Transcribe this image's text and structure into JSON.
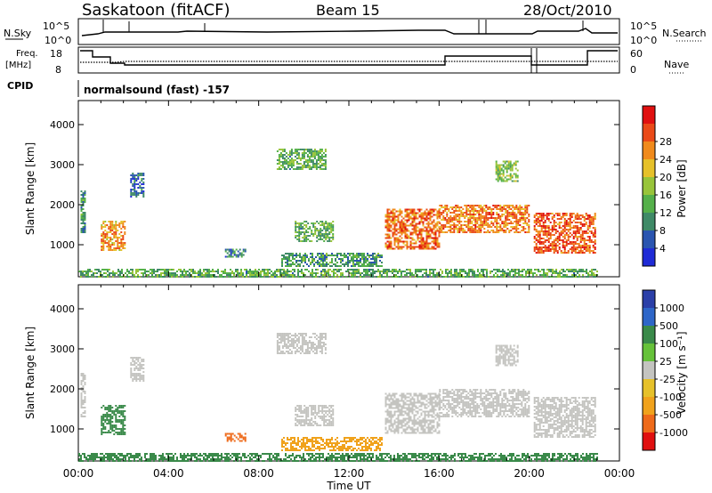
{
  "header": {
    "station": "Saskatoon (fitACF)",
    "beam": "Beam 15",
    "date": "28/Oct/2010"
  },
  "top_panels": {
    "nsky_label": "N.Sky",
    "nsky_ticks": [
      "10^5",
      "10^0"
    ],
    "nsearch_label": "N.Search",
    "nsearch_ticks": [
      "10^5",
      "10^0"
    ],
    "freq_label_1": "Freq.",
    "freq_label_2": "[MHz]",
    "freq_ticks": [
      "18",
      "8"
    ],
    "nave_label": "Nave",
    "nave_ticks": [
      "60",
      "0"
    ],
    "cpid_label": "CPID",
    "cpid_value": "normalsound (fast) -157"
  },
  "colors": {
    "power_scale": [
      "#1f2bd6",
      "#2a55b0",
      "#3f8a67",
      "#55b04a",
      "#98c43a",
      "#e6c12a",
      "#f08a1c",
      "#ea4a18",
      "#e01010"
    ],
    "velocity_scale": [
      "#2b3fa8",
      "#2e66c8",
      "#3a8a4a",
      "#66c23a",
      "#c4c4c0",
      "#e6c12a",
      "#f0a21c",
      "#ee6a1a",
      "#e01010"
    ],
    "ground_scatter": "#bcbcb8"
  },
  "chart_data": [
    {
      "type": "heatmap",
      "title": "Power",
      "xlabel": "",
      "ylabel": "Slant Range [km]",
      "x_ticks": [
        "00:00",
        "04:00",
        "08:00",
        "12:00",
        "16:00",
        "20:00",
        "00:00"
      ],
      "y_ticks": [
        "1000",
        "2000",
        "3000",
        "4000"
      ],
      "ylim": [
        200,
        4600
      ],
      "colorbar_label": "Power [dB]",
      "colorbar_ticks": [
        "4",
        "8",
        "12",
        "16",
        "20",
        "24",
        "28"
      ],
      "regions": [
        {
          "t0": 0.1,
          "t1": 0.3,
          "r0": 1300,
          "r1": 2400,
          "value": 10
        },
        {
          "t0": 1.0,
          "t1": 2.1,
          "r0": 850,
          "r1": 1600,
          "value": 22
        },
        {
          "t0": 2.3,
          "t1": 2.9,
          "r0": 2200,
          "r1": 2800,
          "value": 6
        },
        {
          "t0": 8.8,
          "t1": 11.0,
          "r0": 2900,
          "r1": 3400,
          "value": 12
        },
        {
          "t0": 9.6,
          "t1": 11.3,
          "r0": 1100,
          "r1": 1600,
          "value": 12
        },
        {
          "t0": 6.5,
          "t1": 7.4,
          "r0": 700,
          "r1": 900,
          "value": 8
        },
        {
          "t0": 9.0,
          "t1": 13.5,
          "r0": 450,
          "r1": 800,
          "value": 10
        },
        {
          "t0": 13.6,
          "t1": 16.0,
          "r0": 900,
          "r1": 1900,
          "value": 25
        },
        {
          "t0": 16.0,
          "t1": 20.0,
          "r0": 1300,
          "r1": 2000,
          "value": 24
        },
        {
          "t0": 20.2,
          "t1": 22.9,
          "r0": 800,
          "r1": 1800,
          "value": 26
        },
        {
          "t0": 18.5,
          "t1": 19.5,
          "r0": 2600,
          "r1": 3100,
          "value": 14
        },
        {
          "t0": 0,
          "t1": 23,
          "r0": 200,
          "r1": 400,
          "value": 12
        }
      ]
    },
    {
      "type": "heatmap",
      "title": "Velocity",
      "xlabel": "Time UT",
      "ylabel": "Slant Range [km]",
      "x_ticks": [
        "00:00",
        "04:00",
        "08:00",
        "12:00",
        "16:00",
        "20:00",
        "00:00"
      ],
      "y_ticks": [
        "1000",
        "2000",
        "3000",
        "4000"
      ],
      "ylim": [
        200,
        4600
      ],
      "colorbar_label": "Velocity [m s⁻¹]",
      "colorbar_ticks": [
        "1000",
        "500",
        "100",
        "25",
        "-25",
        "-100",
        "-500",
        "-1000"
      ],
      "regions": [
        {
          "t0": 0.1,
          "t1": 0.3,
          "r0": 1300,
          "r1": 2400,
          "value": 0
        },
        {
          "t0": 1.0,
          "t1": 2.1,
          "r0": 850,
          "r1": 1600,
          "value": 150
        },
        {
          "t0": 2.3,
          "t1": 2.9,
          "r0": 2200,
          "r1": 2800,
          "value": 0
        },
        {
          "t0": 8.8,
          "t1": 11.0,
          "r0": 2900,
          "r1": 3400,
          "value": 0
        },
        {
          "t0": 9.6,
          "t1": 11.3,
          "r0": 1100,
          "r1": 1600,
          "value": 0
        },
        {
          "t0": 6.5,
          "t1": 7.4,
          "r0": 700,
          "r1": 900,
          "value": -400
        },
        {
          "t0": 9.0,
          "t1": 13.5,
          "r0": 450,
          "r1": 800,
          "value": -150
        },
        {
          "t0": 13.6,
          "t1": 16.0,
          "r0": 900,
          "r1": 1900,
          "value": 0
        },
        {
          "t0": 16.0,
          "t1": 20.0,
          "r0": 1300,
          "r1": 2000,
          "value": 0
        },
        {
          "t0": 20.2,
          "t1": 22.9,
          "r0": 800,
          "r1": 1800,
          "value": 0
        },
        {
          "t0": 18.5,
          "t1": 19.5,
          "r0": 2600,
          "r1": 3100,
          "value": 0
        },
        {
          "t0": 0,
          "t1": 23,
          "r0": 200,
          "r1": 400,
          "value": 150
        }
      ]
    }
  ]
}
